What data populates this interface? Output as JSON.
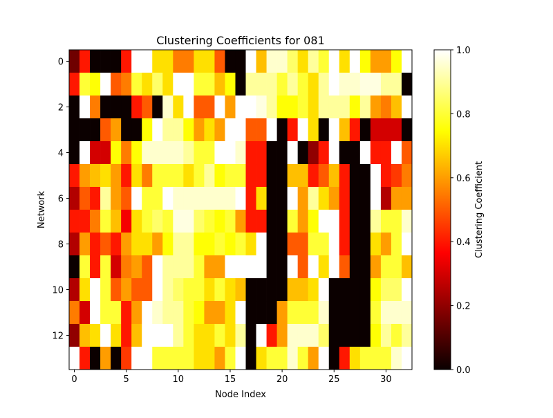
{
  "chart_data": {
    "type": "heatmap",
    "title": "Clustering Coefficients for 081",
    "xlabel": "Node Index",
    "ylabel": "Network",
    "colorbar_label": "Clustering Coefficient",
    "colormap": "hot",
    "vmin": 0.0,
    "vmax": 1.0,
    "n_rows": 14,
    "n_cols": 33,
    "x_ticks": [
      0,
      5,
      10,
      15,
      20,
      25,
      30
    ],
    "y_ticks": [
      0,
      2,
      4,
      6,
      8,
      10,
      12
    ],
    "colorbar_ticks": [
      "0.0",
      "0.2",
      "0.4",
      "0.6",
      "0.8",
      "1.0"
    ],
    "colorbar_tick_values": [
      0.0,
      0.2,
      0.4,
      0.6,
      0.8,
      1.0
    ],
    "values": [
      [
        0.15,
        0.4,
        0.0,
        0.0,
        0.0,
        0.4,
        1.0,
        1.0,
        0.7,
        0.7,
        0.55,
        0.55,
        0.7,
        0.7,
        0.5,
        0.0,
        0.0,
        1.0,
        0.65,
        0.95,
        0.95,
        0.85,
        0.7,
        0.9,
        0.8,
        1.0,
        0.7,
        1.0,
        0.75,
        0.6,
        0.6,
        0.75,
        1.0
      ],
      [
        0.4,
        0.8,
        0.75,
        1.0,
        0.5,
        0.55,
        0.8,
        0.7,
        0.85,
        0.7,
        1.0,
        1.0,
        0.8,
        0.8,
        0.65,
        0.75,
        0.0,
        0.9,
        0.9,
        0.9,
        0.8,
        0.9,
        0.8,
        0.7,
        0.9,
        1.0,
        0.95,
        0.95,
        0.97,
        0.97,
        0.9,
        0.9,
        0.0
      ],
      [
        0.0,
        1.0,
        0.55,
        0.0,
        0.0,
        0.0,
        0.4,
        0.5,
        0.0,
        0.95,
        0.7,
        1.0,
        0.5,
        0.5,
        1.0,
        0.6,
        1.0,
        1.0,
        0.97,
        0.9,
        0.75,
        0.75,
        0.8,
        0.7,
        0.9,
        0.9,
        0.9,
        0.75,
        0.9,
        0.6,
        0.55,
        0.65,
        1.0
      ],
      [
        0.0,
        0.0,
        0.0,
        0.5,
        0.6,
        0.0,
        0.0,
        0.75,
        1.0,
        0.9,
        0.9,
        0.75,
        0.6,
        0.7,
        0.6,
        1.0,
        1.0,
        0.5,
        0.5,
        1.0,
        0.0,
        0.4,
        1.0,
        0.7,
        0.0,
        1.0,
        0.65,
        0.4,
        0.0,
        0.3,
        0.3,
        0.3,
        0.0
      ],
      [
        0.0,
        1.0,
        0.3,
        0.3,
        0.75,
        0.55,
        0.75,
        0.95,
        0.95,
        0.95,
        0.95,
        0.9,
        0.8,
        0.8,
        1.0,
        1.0,
        0.95,
        0.4,
        0.4,
        0.0,
        0.0,
        1.0,
        0.0,
        0.2,
        0.4,
        1.0,
        0.0,
        0.0,
        1.0,
        0.4,
        0.4,
        1.0,
        0.5
      ],
      [
        0.4,
        0.6,
        0.65,
        0.7,
        0.6,
        0.4,
        0.7,
        0.55,
        0.8,
        0.8,
        0.8,
        0.7,
        0.8,
        0.9,
        0.75,
        0.8,
        0.8,
        0.4,
        0.4,
        0.0,
        0.0,
        0.65,
        0.65,
        0.4,
        0.5,
        0.65,
        0.4,
        0.0,
        0.0,
        1.0,
        0.4,
        0.45,
        0.55
      ],
      [
        0.25,
        0.5,
        0.4,
        0.9,
        0.6,
        0.5,
        1.0,
        0.8,
        0.8,
        1.0,
        0.95,
        0.95,
        0.95,
        0.95,
        0.95,
        0.95,
        1.0,
        0.4,
        0.7,
        0.0,
        0.0,
        1.0,
        0.6,
        0.9,
        0.7,
        0.6,
        0.4,
        0.0,
        0.0,
        1.0,
        0.25,
        0.6,
        0.6
      ],
      [
        0.4,
        0.4,
        0.55,
        0.8,
        0.65,
        0.35,
        0.7,
        0.8,
        0.85,
        0.8,
        0.97,
        0.97,
        0.85,
        0.8,
        0.75,
        0.8,
        0.6,
        0.4,
        0.4,
        0.0,
        0.0,
        0.8,
        0.6,
        0.75,
        1.0,
        1.0,
        0.4,
        0.0,
        0.0,
        0.9,
        0.8,
        0.8,
        0.95
      ],
      [
        0.25,
        0.6,
        0.4,
        0.5,
        0.4,
        0.6,
        0.7,
        0.7,
        0.6,
        0.75,
        0.9,
        0.9,
        0.75,
        0.75,
        0.8,
        0.75,
        0.8,
        0.7,
        1.0,
        0.0,
        0.0,
        0.5,
        0.5,
        0.8,
        0.8,
        1.0,
        0.4,
        0.0,
        0.0,
        0.7,
        0.6,
        0.8,
        1.0
      ],
      [
        0.0,
        0.8,
        0.4,
        0.8,
        0.3,
        0.55,
        0.6,
        0.5,
        1.0,
        0.9,
        0.9,
        0.9,
        0.8,
        0.6,
        0.6,
        1.0,
        1.0,
        1.0,
        1.0,
        0.0,
        0.0,
        1.0,
        0.5,
        1.0,
        0.7,
        1.0,
        0.5,
        0.0,
        0.0,
        0.6,
        0.8,
        0.8,
        0.65
      ],
      [
        0.25,
        0.7,
        1.0,
        0.8,
        0.5,
        0.6,
        0.5,
        0.5,
        1.0,
        0.9,
        0.85,
        0.8,
        0.8,
        0.7,
        0.8,
        0.7,
        0.65,
        0.0,
        0.0,
        0.0,
        0.0,
        0.65,
        0.65,
        0.7,
        1.0,
        0.0,
        0.0,
        0.0,
        0.0,
        0.75,
        0.85,
        0.85,
        1.0
      ],
      [
        0.55,
        0.3,
        1.0,
        0.8,
        0.8,
        0.4,
        0.6,
        1.0,
        0.95,
        0.9,
        0.9,
        0.8,
        0.75,
        0.6,
        0.6,
        0.7,
        1.0,
        0.0,
        0.0,
        0.0,
        0.6,
        0.8,
        0.8,
        0.8,
        0.95,
        0.0,
        0.0,
        0.0,
        0.0,
        0.8,
        0.95,
        0.95,
        0.95
      ],
      [
        0.2,
        0.65,
        0.7,
        1.0,
        0.7,
        0.4,
        0.65,
        1.0,
        1.0,
        1.0,
        0.9,
        0.8,
        0.7,
        0.7,
        0.8,
        0.7,
        0.9,
        0.0,
        1.0,
        0.4,
        0.6,
        0.95,
        0.95,
        0.95,
        0.85,
        0.0,
        0.0,
        0.0,
        0.0,
        0.75,
        0.9,
        0.8,
        0.9
      ],
      [
        1.0,
        0.4,
        0.0,
        0.6,
        0.0,
        0.45,
        1.0,
        1.0,
        0.8,
        0.8,
        0.8,
        0.8,
        0.7,
        0.7,
        0.6,
        0.8,
        1.0,
        0.0,
        0.7,
        0.8,
        0.8,
        0.95,
        0.8,
        0.6,
        1.0,
        0.0,
        0.4,
        0.7,
        0.8,
        0.8,
        0.8,
        0.95,
        1.0
      ]
    ]
  }
}
